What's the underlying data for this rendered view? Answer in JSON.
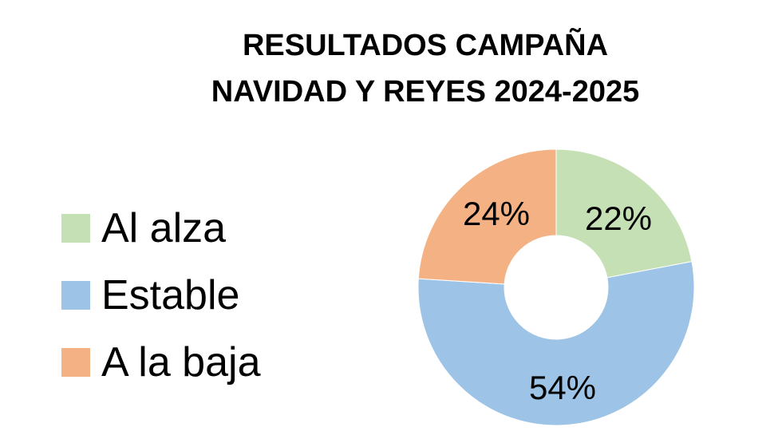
{
  "title": {
    "line1": "RESULTADOS CAMPAÑA",
    "line2": "NAVIDAD Y REYES 2024-2025"
  },
  "legend": [
    {
      "label": "Al alza",
      "color": "#c5e0b4"
    },
    {
      "label": "Estable",
      "color": "#9dc3e6"
    },
    {
      "label": "A la baja",
      "color": "#f4b183"
    }
  ],
  "labels": {
    "al_alza": "22%",
    "estable": "54%",
    "a_la_baja": "24%"
  },
  "chart_data": {
    "type": "pie",
    "variant": "donut",
    "title": "RESULTADOS CAMPAÑA NAVIDAD Y REYES 2024-2025",
    "categories": [
      "Al alza",
      "Estable",
      "A la baja"
    ],
    "values": [
      22,
      54,
      24
    ],
    "unit": "%",
    "colors": [
      "#c5e0b4",
      "#9dc3e6",
      "#f4b183"
    ],
    "data_labels": [
      "22%",
      "54%",
      "24%"
    ],
    "start_angle": "12 o'clock, clockwise",
    "legend_position": "left"
  }
}
